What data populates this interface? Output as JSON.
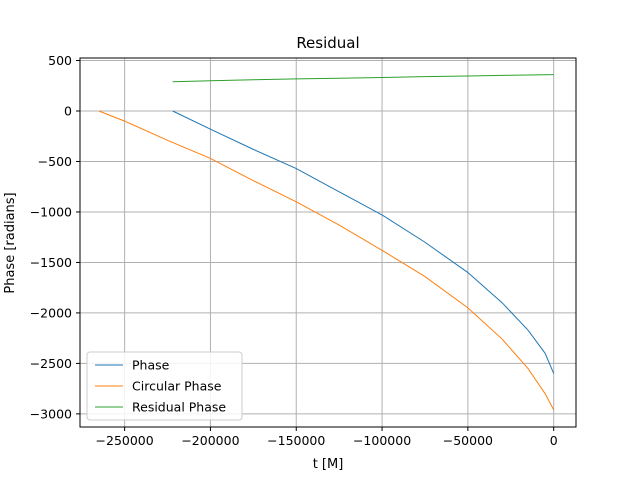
{
  "chart_data": {
    "type": "line",
    "title": "Residual",
    "xlabel": "t [M]",
    "ylabel": "Phase [radians]",
    "xlim": [
      -276000,
      13000
    ],
    "ylim": [
      -3130,
      525
    ],
    "xticks": [
      -250000,
      -200000,
      -150000,
      -100000,
      -50000,
      0
    ],
    "xtick_labels": [
      "−250000",
      "−200000",
      "−150000",
      "−100000",
      "−50000",
      "0"
    ],
    "yticks": [
      500,
      0,
      -500,
      -1000,
      -1500,
      -2000,
      -2500,
      -3000
    ],
    "ytick_labels": [
      "500",
      "0",
      "−500",
      "−1000",
      "−1500",
      "−2000",
      "−2500",
      "−3000"
    ],
    "grid": true,
    "legend_position": "lower-left",
    "series": [
      {
        "name": "Phase",
        "color": "#1f77b4",
        "x": [
          -222000,
          -200000,
          -175000,
          -150000,
          -125000,
          -100000,
          -75000,
          -50000,
          -30000,
          -15000,
          -5000,
          0
        ],
        "y": [
          0,
          -180,
          -380,
          -570,
          -800,
          -1030,
          -1300,
          -1600,
          -1900,
          -2170,
          -2400,
          -2600
        ]
      },
      {
        "name": "Circular Phase",
        "color": "#ff7f0e",
        "x": [
          -265000,
          -250000,
          -225000,
          -200000,
          -175000,
          -150000,
          -125000,
          -100000,
          -75000,
          -50000,
          -30000,
          -15000,
          -5000,
          0
        ],
        "y": [
          0,
          -100,
          -290,
          -470,
          -690,
          -900,
          -1130,
          -1380,
          -1640,
          -1950,
          -2260,
          -2550,
          -2800,
          -2960
        ]
      },
      {
        "name": "Residual Phase",
        "color": "#2ca02c",
        "x": [
          -222000,
          -200000,
          -175000,
          -150000,
          -125000,
          -100000,
          -75000,
          -50000,
          -25000,
          0
        ],
        "y": [
          290,
          300,
          310,
          318,
          325,
          332,
          340,
          347,
          354,
          360
        ]
      }
    ]
  }
}
